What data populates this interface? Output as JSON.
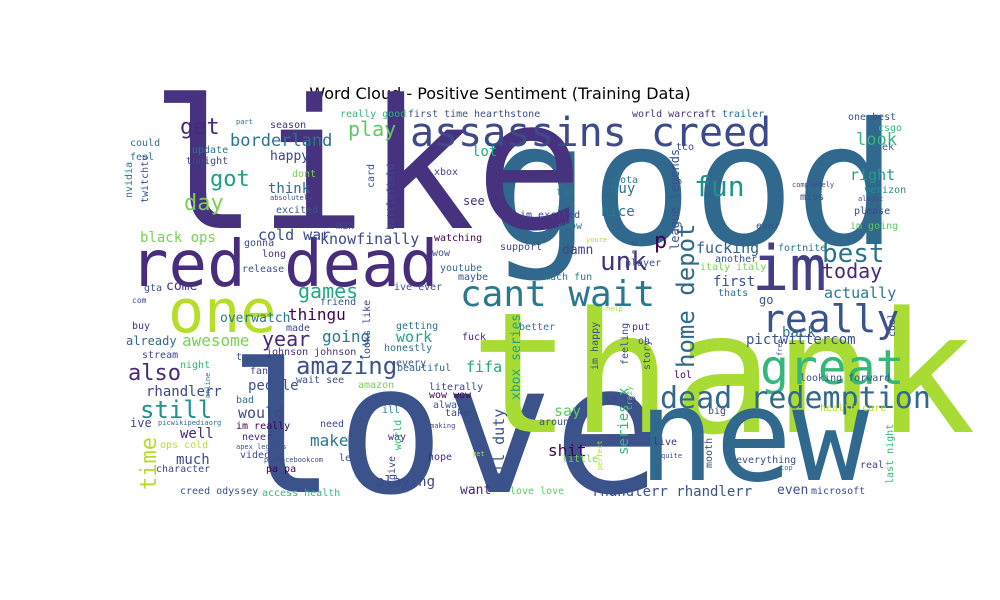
{
  "chart_data": {
    "type": "wordcloud",
    "title": "Word Cloud - Positive Sentiment (Training Data)",
    "colormap": "viridis",
    "background": "#ffffff",
    "words": [
      {
        "text": "good",
        "weight": 1.0,
        "color": "#31688e"
      },
      {
        "text": "like",
        "weight": 0.98,
        "color": "#46327e"
      },
      {
        "text": "love",
        "weight": 0.95,
        "color": "#3b528b"
      },
      {
        "text": "thank",
        "weight": 0.93,
        "color": "#a8db34"
      },
      {
        "text": "new",
        "weight": 0.72,
        "color": "#31688e"
      },
      {
        "text": "red dead",
        "weight": 0.5,
        "color": "#472d7b"
      },
      {
        "text": "one",
        "weight": 0.47,
        "color": "#b5de2b"
      },
      {
        "text": "im",
        "weight": 0.46,
        "color": "#433e85"
      },
      {
        "text": "assassins creed",
        "weight": 0.4,
        "color": "#3e4989"
      },
      {
        "text": "great",
        "weight": 0.38,
        "color": "#35b779"
      },
      {
        "text": "cant wait",
        "weight": 0.36,
        "color": "#2a788e"
      },
      {
        "text": "really",
        "weight": 0.33,
        "color": "#3b528b"
      },
      {
        "text": "dead redemption",
        "weight": 0.28,
        "color": "#31688e"
      },
      {
        "text": "fun",
        "weight": 0.22,
        "color": "#21918c"
      },
      {
        "text": "best",
        "weight": 0.22,
        "color": "#2c728e"
      },
      {
        "text": "home depot",
        "weight": 0.2,
        "color": "#31688e"
      },
      {
        "text": "unk",
        "weight": 0.2,
        "color": "#46327e"
      },
      {
        "text": "amazing",
        "weight": 0.2,
        "color": "#3b528b"
      },
      {
        "text": "games",
        "weight": 0.18,
        "color": "#22a884"
      },
      {
        "text": "still",
        "weight": 0.18,
        "color": "#21918c"
      },
      {
        "text": "today",
        "weight": 0.17,
        "color": "#482878"
      },
      {
        "text": "day",
        "weight": 0.18,
        "color": "#7ad151"
      },
      {
        "text": "got",
        "weight": 0.17,
        "color": "#1f9e89"
      },
      {
        "text": "get",
        "weight": 0.17,
        "color": "#482878"
      },
      {
        "text": "time",
        "weight": 0.17,
        "color": "#b5de2b"
      },
      {
        "text": "also",
        "weight": 0.16,
        "color": "#482878"
      },
      {
        "text": "play",
        "weight": 0.15,
        "color": "#5ec962"
      },
      {
        "text": "year",
        "weight": 0.15,
        "color": "#482878"
      },
      {
        "text": "p",
        "weight": 0.15,
        "color": "#440154"
      },
      {
        "text": "look",
        "weight": 0.13,
        "color": "#35b779"
      },
      {
        "text": "actually",
        "weight": 0.11,
        "color": "#2a788e"
      },
      {
        "text": "borderland",
        "weight": 0.12,
        "color": "#2c728e"
      },
      {
        "text": "cold war",
        "weight": 0.11,
        "color": "#3e4989"
      },
      {
        "text": "black ops",
        "weight": 0.11,
        "color": "#7ad151"
      },
      {
        "text": "knowfinally",
        "weight": 0.11,
        "color": "#3e4989"
      },
      {
        "text": "thingu",
        "weight": 0.12,
        "color": "#440154"
      },
      {
        "text": "going",
        "weight": 0.12,
        "color": "#2a788e"
      },
      {
        "text": "awesome",
        "weight": 0.12,
        "color": "#7ad151"
      },
      {
        "text": "work",
        "weight": 0.11,
        "color": "#22a884"
      },
      {
        "text": "would",
        "weight": 0.11,
        "color": "#3e4989"
      },
      {
        "text": "well",
        "weight": 0.11,
        "color": "#482878"
      },
      {
        "text": "much",
        "weight": 0.11,
        "color": "#3e4989"
      },
      {
        "text": "make",
        "weight": 0.11,
        "color": "#2a788e"
      },
      {
        "text": "say",
        "weight": 0.11,
        "color": "#5ec962"
      },
      {
        "text": "shit",
        "weight": 0.11,
        "color": "#440154"
      },
      {
        "text": "call duty",
        "weight": 0.11,
        "color": "#3b528b"
      },
      {
        "text": "fifa",
        "weight": 0.11,
        "color": "#22a884"
      },
      {
        "text": "xbox series",
        "weight": 0.1,
        "color": "#20a386"
      },
      {
        "text": "playing",
        "weight": 0.1,
        "color": "#3e4989"
      },
      {
        "text": "want",
        "weight": 0.09,
        "color": "#482878"
      },
      {
        "text": "rhandlerr rhandlerr",
        "weight": 0.1,
        "color": "#3b528b"
      },
      {
        "text": "rhandlerr",
        "weight": 0.09,
        "color": "#404688"
      },
      {
        "text": "pictwittercom",
        "weight": 0.1,
        "color": "#3b528b"
      },
      {
        "text": "fucking",
        "weight": 0.1,
        "color": "#33638d"
      },
      {
        "text": "first",
        "weight": 0.09,
        "color": "#3b528b"
      },
      {
        "text": "back",
        "weight": 0.1,
        "color": "#2c728e"
      },
      {
        "text": "right",
        "weight": 0.1,
        "color": "#1f9e89"
      },
      {
        "text": "happy",
        "weight": 0.09,
        "color": "#414487"
      },
      {
        "text": "think",
        "weight": 0.09,
        "color": "#31688e"
      },
      {
        "text": "people",
        "weight": 0.09,
        "color": "#3b528b"
      },
      {
        "text": "even",
        "weight": 0.09,
        "color": "#3b528b"
      },
      {
        "text": "guy",
        "weight": 0.09,
        "color": "#2c728e"
      },
      {
        "text": "nice",
        "weight": 0.09,
        "color": "#2a788e"
      },
      {
        "text": "series x",
        "weight": 0.09,
        "color": "#35b779"
      },
      {
        "text": "lot",
        "weight": 0.09,
        "color": "#22a884"
      },
      {
        "text": "come",
        "weight": 0.09,
        "color": "#46327e"
      },
      {
        "text": "overwatch",
        "weight": 0.09,
        "color": "#2a788e"
      },
      {
        "text": "already",
        "weight": 0.08,
        "color": "#31688e"
      },
      {
        "text": "league legends",
        "weight": 0.08,
        "color": "#3b528b"
      },
      {
        "text": "damn",
        "weight": 0.08,
        "color": "#414487"
      },
      {
        "text": "see",
        "weight": 0.08,
        "color": "#472d7b"
      },
      {
        "text": "go",
        "weight": 0.08,
        "color": "#3b528b"
      },
      {
        "text": "im excited",
        "weight": 0.07,
        "color": "#3e4989"
      },
      {
        "text": "ive",
        "weight": 0.08,
        "color": "#414487"
      },
      {
        "text": "really good",
        "weight": 0.07,
        "color": "#35b779"
      },
      {
        "text": "first time",
        "weight": 0.07,
        "color": "#3b528b"
      },
      {
        "text": "hearthstone",
        "weight": 0.07,
        "color": "#3b528b"
      },
      {
        "text": "world warcraft",
        "weight": 0.07,
        "color": "#46327e"
      },
      {
        "text": "trailer",
        "weight": 0.07,
        "color": "#2c728e"
      },
      {
        "text": "one best",
        "weight": 0.07,
        "color": "#3b528b"
      },
      {
        "text": "tco",
        "weight": 0.06,
        "color": "#3e4989"
      },
      {
        "text": "week",
        "weight": 0.06,
        "color": "#31688e"
      },
      {
        "text": "csgo",
        "weight": 0.06,
        "color": "#35b779"
      },
      {
        "text": "verizon",
        "weight": 0.06,
        "color": "#21918c"
      },
      {
        "text": "miss",
        "weight": 0.06,
        "color": "#3b528b"
      },
      {
        "text": "please",
        "weight": 0.06,
        "color": "#3e4989"
      },
      {
        "text": "im going",
        "weight": 0.06,
        "color": "#5ec962"
      },
      {
        "text": "fortnite",
        "weight": 0.06,
        "color": "#2a788e"
      },
      {
        "text": "italy italy",
        "weight": 0.06,
        "color": "#7ad151"
      },
      {
        "text": "support",
        "weight": 0.06,
        "color": "#3e4989"
      },
      {
        "text": "watching",
        "weight": 0.06,
        "color": "#440154"
      },
      {
        "text": "youtube",
        "weight": 0.06,
        "color": "#31688e"
      },
      {
        "text": "maybe",
        "weight": 0.06,
        "color": "#3b528b"
      },
      {
        "text": "ive ever",
        "weight": 0.06,
        "color": "#3b528b"
      },
      {
        "text": "getting",
        "weight": 0.06,
        "color": "#2c728e"
      },
      {
        "text": "honestly",
        "weight": 0.06,
        "color": "#2c728e"
      },
      {
        "text": "beautiful",
        "weight": 0.06,
        "color": "#31688e"
      },
      {
        "text": "every",
        "weight": 0.06,
        "color": "#3b528b"
      },
      {
        "text": "literally",
        "weight": 0.06,
        "color": "#414487"
      },
      {
        "text": "wow wow",
        "weight": 0.06,
        "color": "#440154"
      },
      {
        "text": "always",
        "weight": 0.06,
        "color": "#3b528b"
      },
      {
        "text": "take",
        "weight": 0.06,
        "color": "#3e4989"
      },
      {
        "text": "around",
        "weight": 0.06,
        "color": "#3b528b"
      },
      {
        "text": "fuck",
        "weight": 0.06,
        "color": "#482878"
      },
      {
        "text": "better",
        "weight": 0.06,
        "color": "#2a788e"
      },
      {
        "text": "put",
        "weight": 0.06,
        "color": "#482878"
      },
      {
        "text": "oh",
        "weight": 0.06,
        "color": "#3e4989"
      },
      {
        "text": "lol",
        "weight": 0.06,
        "color": "#440154"
      },
      {
        "text": "cs go",
        "weight": 0.06,
        "color": "#404688"
      },
      {
        "text": "big",
        "weight": 0.06,
        "color": "#3e4989"
      },
      {
        "text": "live",
        "weight": 0.06,
        "color": "#472d7b"
      },
      {
        "text": "real",
        "weight": 0.06,
        "color": "#414487"
      },
      {
        "text": "everything",
        "weight": 0.06,
        "color": "#3e4989"
      },
      {
        "text": "microsoft",
        "weight": 0.06,
        "color": "#3e4989"
      },
      {
        "text": "love love",
        "weight": 0.05,
        "color": "#5ec962"
      },
      {
        "text": "hope",
        "weight": 0.05,
        "color": "#472d7b"
      },
      {
        "text": "little",
        "weight": 0.05,
        "color": "#7ad151"
      },
      {
        "text": "let",
        "weight": 0.05,
        "color": "#3b528b"
      },
      {
        "text": "need",
        "weight": 0.05,
        "color": "#3e4989"
      },
      {
        "text": "ill",
        "weight": 0.05,
        "color": "#2a788e"
      },
      {
        "text": "way",
        "weight": 0.05,
        "color": "#482878"
      },
      {
        "text": "video",
        "weight": 0.05,
        "color": "#3e4989"
      },
      {
        "text": "never",
        "weight": 0.05,
        "color": "#482878"
      },
      {
        "text": "im really",
        "weight": 0.05,
        "color": "#440154"
      },
      {
        "text": "character",
        "weight": 0.05,
        "color": "#3e4989"
      },
      {
        "text": "creed odyssey",
        "weight": 0.05,
        "color": "#3b528b"
      },
      {
        "text": "access health",
        "weight": 0.05,
        "color": "#35b779"
      },
      {
        "text": "pa pa",
        "weight": 0.05,
        "color": "#440154"
      },
      {
        "text": "wait see",
        "weight": 0.05,
        "color": "#3b528b"
      },
      {
        "text": "johnson johnson",
        "weight": 0.05,
        "color": "#46327e"
      },
      {
        "text": "friend",
        "weight": 0.05,
        "color": "#3b528b"
      },
      {
        "text": "release",
        "weight": 0.05,
        "color": "#3b528b"
      },
      {
        "text": "long",
        "weight": 0.05,
        "color": "#46327e"
      },
      {
        "text": "excited",
        "weight": 0.05,
        "color": "#3b528b"
      },
      {
        "text": "dont",
        "weight": 0.04,
        "color": "#7ad151"
      },
      {
        "text": "tonight",
        "weight": 0.05,
        "color": "#404688"
      },
      {
        "text": "update",
        "weight": 0.05,
        "color": "#2c728e"
      },
      {
        "text": "could",
        "weight": 0.05,
        "color": "#2c728e"
      },
      {
        "text": "feel",
        "weight": 0.05,
        "color": "#2c728e"
      },
      {
        "text": "season",
        "weight": 0.05,
        "color": "#46327e"
      },
      {
        "text": "nvidia",
        "weight": 0.05,
        "color": "#2a788e"
      },
      {
        "text": "twitchtv",
        "weight": 0.05,
        "color": "#3b528b"
      },
      {
        "text": "gta",
        "weight": 0.05,
        "color": "#3b528b"
      },
      {
        "text": "buy",
        "weight": 0.05,
        "color": "#46327e"
      },
      {
        "text": "stream",
        "weight": 0.05,
        "color": "#414487"
      },
      {
        "text": "night",
        "weight": 0.05,
        "color": "#35b779"
      },
      {
        "text": "bad",
        "weight": 0.05,
        "color": "#2c728e"
      },
      {
        "text": "team",
        "weight": 0.05,
        "color": "#3b528b"
      },
      {
        "text": "gonna",
        "weight": 0.05,
        "color": "#3e4989"
      },
      {
        "text": "man",
        "weight": 0.05,
        "color": "#3e4989"
      },
      {
        "text": "show",
        "weight": 0.05,
        "color": "#2a788e"
      },
      {
        "text": "far",
        "weight": 0.05,
        "color": "#2a788e"
      },
      {
        "text": "xbox",
        "weight": 0.05,
        "color": "#3e4989"
      },
      {
        "text": "dota",
        "weight": 0.05,
        "color": "#2a788e"
      },
      {
        "text": "much fun",
        "weight": 0.05,
        "color": "#2a788e"
      },
      {
        "text": "player",
        "weight": 0.05,
        "color": "#3b528b"
      },
      {
        "text": "another",
        "weight": 0.05,
        "color": "#3b528b"
      },
      {
        "text": "thats",
        "weight": 0.05,
        "color": "#2c728e"
      },
      {
        "text": "ever",
        "weight": 0.05,
        "color": "#3b528b"
      },
      {
        "text": "wow",
        "weight": 0.05,
        "color": "#3b528b"
      },
      {
        "text": "feeling",
        "weight": 0.05,
        "color": "#3e4989"
      },
      {
        "text": "story",
        "weight": 0.05,
        "color": "#3b528b"
      },
      {
        "text": "im happy",
        "weight": 0.05,
        "color": "#3b528b"
      },
      {
        "text": "looking forward",
        "weight": 0.05,
        "color": "#3b528b"
      },
      {
        "text": "cool",
        "weight": 0.05,
        "color": "#3e4989"
      },
      {
        "text": "health care",
        "weight": 0.05,
        "color": "#b5de2b"
      },
      {
        "text": "last night",
        "weight": 0.04,
        "color": "#35b779"
      },
      {
        "text": "mooth",
        "weight": 0.04,
        "color": "#3b528b"
      },
      {
        "text": "quite",
        "weight": 0.04,
        "color": "#3b528b"
      },
      {
        "text": "top",
        "weight": 0.03,
        "color": "#21918c"
      },
      {
        "text": "card",
        "weight": 0.04,
        "color": "#3b528b"
      },
      {
        "text": "battlefield",
        "weight": 0.05,
        "color": "#3e4989"
      },
      {
        "text": "give",
        "weight": 0.04,
        "color": "#3e4989"
      },
      {
        "text": "world",
        "weight": 0.04,
        "color": "#35b779"
      },
      {
        "text": "amazon",
        "weight": 0.04,
        "color": "#7ad151"
      },
      {
        "text": "looks like",
        "weight": 0.04,
        "color": "#3e4989"
      },
      {
        "text": "made",
        "weight": 0.04,
        "color": "#3e4989"
      },
      {
        "text": "fan",
        "weight": 0.04,
        "color": "#3e4989"
      },
      {
        "text": "online",
        "weight": 0.03,
        "color": "#2c728e"
      },
      {
        "text": "ops cold",
        "weight": 0.04,
        "color": "#b5de2b"
      },
      {
        "text": "picwikipediaorg",
        "weight": 0.03,
        "color": "#2c728e"
      },
      {
        "text": "picfacebookcom",
        "weight": 0.03,
        "color": "#3e4989"
      },
      {
        "text": "apex legends",
        "weight": 0.03,
        "color": "#3b528b"
      },
      {
        "text": "completely",
        "weight": 0.03,
        "color": "#3e4989"
      },
      {
        "text": "almost",
        "weight": 0.03,
        "color": "#3e4989"
      },
      {
        "text": "absolutely",
        "weight": 0.03,
        "color": "#3e4989"
      },
      {
        "text": "part",
        "weight": 0.03,
        "color": "#2c728e"
      },
      {
        "text": "perfect",
        "weight": 0.03,
        "color": "#b5de2b"
      },
      {
        "text": "crazy",
        "weight": 0.03,
        "color": "#5ec962"
      },
      {
        "text": "making",
        "weight": 0.03,
        "color": "#3e4989"
      },
      {
        "text": "yet",
        "weight": 0.03,
        "color": "#b5de2b"
      },
      {
        "text": "youre",
        "weight": 0.03,
        "color": "#b5de2b"
      },
      {
        "text": "help",
        "weight": 0.03,
        "color": "#b5de2b"
      },
      {
        "text": "free",
        "weight": 0.03,
        "color": "#3e4989"
      },
      {
        "text": "com",
        "weight": 0.03,
        "color": "#3e4989"
      },
      {
        "text": "e e",
        "weight": 0.03,
        "color": "#3b528b"
      }
    ]
  }
}
